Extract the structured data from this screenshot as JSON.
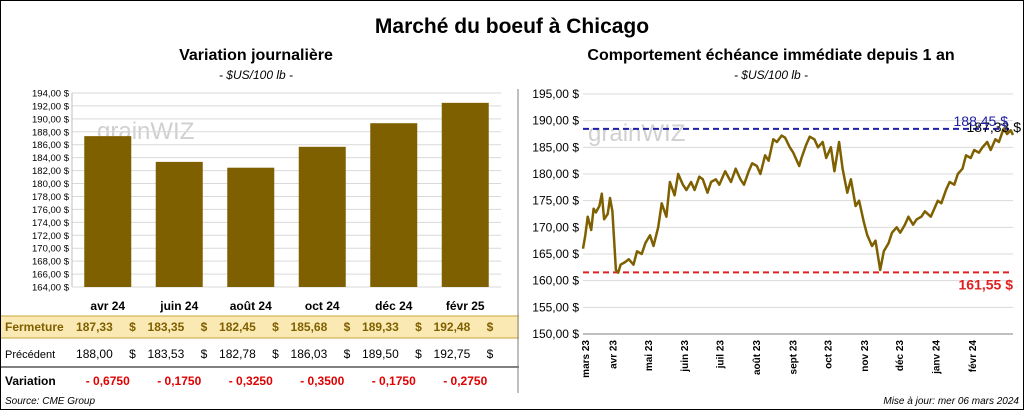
{
  "title": "Marché du boeuf à Chicago",
  "watermark": "grainWIZ",
  "left_panel": {
    "title": "Variation  journalière",
    "subtitle": "- $US/100 lb -"
  },
  "right_panel": {
    "title": "Comportement  échéance immédiate depuis 1 an",
    "subtitle": "- $US/100 lb -"
  },
  "table": {
    "rows": [
      {
        "label": "Fermeture",
        "values": [
          "187,33",
          "183,35",
          "182,45",
          "185,68",
          "189,33",
          "192,48"
        ],
        "currency": "$"
      },
      {
        "label": "Précédent",
        "values": [
          "188,00",
          "183,53",
          "182,78",
          "186,03",
          "189,50",
          "192,75"
        ],
        "currency": "$"
      },
      {
        "label": "Variation",
        "values": [
          "- 0,6750",
          "- 0,1750",
          "- 0,3250",
          "- 0,3500",
          "- 0,1750",
          "- 0,2750"
        ],
        "currency": ""
      }
    ]
  },
  "footer": {
    "source": "Source: CME Group",
    "updated": "Mise à jour: mer 06 mars 2024"
  },
  "colors": {
    "bar": "#7f6000",
    "line": "#7f6000",
    "high_line": "#1f1fa8",
    "low_line": "#e02020",
    "fermeture_bg": "#fbe9b3",
    "variation_text": "#e00000"
  },
  "chart_data": [
    {
      "type": "bar",
      "title": "Variation  journalière",
      "categories": [
        "avr 24",
        "juin 24",
        "août 24",
        "oct 24",
        "déc 24",
        "févr 25"
      ],
      "values": [
        187.33,
        183.35,
        182.45,
        185.68,
        189.33,
        192.48
      ],
      "ylim": [
        164,
        194
      ],
      "yticks": [
        "164,00 $",
        "166,00 $",
        "168,00 $",
        "170,00 $",
        "172,00 $",
        "174,00 $",
        "176,00 $",
        "178,00 $",
        "180,00 $",
        "182,00 $",
        "184,00 $",
        "186,00 $",
        "188,00 $",
        "190,00 $",
        "192,00 $",
        "194,00 $"
      ],
      "grid": true
    },
    {
      "type": "line",
      "title": "Comportement  échéance immédiate depuis 1 an",
      "ylim": [
        150,
        195
      ],
      "yticks": [
        "150,00 $",
        "155,00 $",
        "160,00 $",
        "165,00 $",
        "170,00 $",
        "175,00 $",
        "180,00 $",
        "185,00 $",
        "190,00 $",
        "195,00 $"
      ],
      "xticks": [
        "mars 23",
        "avr 23",
        "mai 23",
        "juin 23",
        "juil 23",
        "août 23",
        "sept 23",
        "oct 23",
        "nov 23",
        "déc 23",
        "janv 24",
        "févr 24"
      ],
      "x_range": [
        "2023-03-06",
        "2024-03-06"
      ],
      "series": [
        {
          "points": [
            [
              "2023-03-06",
              166.0
            ],
            [
              "2023-03-08",
              168.5
            ],
            [
              "2023-03-10",
              172.0
            ],
            [
              "2023-03-13",
              169.5
            ],
            [
              "2023-03-15",
              173.5
            ],
            [
              "2023-03-17",
              172.8
            ],
            [
              "2023-03-20",
              174.0
            ],
            [
              "2023-03-22",
              176.3
            ],
            [
              "2023-03-24",
              171.5
            ],
            [
              "2023-03-27",
              172.5
            ],
            [
              "2023-03-29",
              175.5
            ],
            [
              "2023-03-31",
              173.0
            ],
            [
              "2023-04-03",
              162.0
            ],
            [
              "2023-04-05",
              161.5
            ],
            [
              "2023-04-07",
              163.0
            ],
            [
              "2023-04-11",
              163.5
            ],
            [
              "2023-04-14",
              164.0
            ],
            [
              "2023-04-18",
              163.0
            ],
            [
              "2023-04-21",
              165.5
            ],
            [
              "2023-04-25",
              165.0
            ],
            [
              "2023-04-28",
              167.0
            ],
            [
              "2023-05-02",
              168.5
            ],
            [
              "2023-05-05",
              166.5
            ],
            [
              "2023-05-09",
              170.0
            ],
            [
              "2023-05-12",
              174.5
            ],
            [
              "2023-05-16",
              172.0
            ],
            [
              "2023-05-19",
              178.5
            ],
            [
              "2023-05-23",
              176.0
            ],
            [
              "2023-05-26",
              180.0
            ],
            [
              "2023-05-30",
              178.0
            ],
            [
              "2023-06-02",
              177.0
            ],
            [
              "2023-06-06",
              178.5
            ],
            [
              "2023-06-09",
              177.0
            ],
            [
              "2023-06-13",
              179.5
            ],
            [
              "2023-06-16",
              179.0
            ],
            [
              "2023-06-20",
              176.5
            ],
            [
              "2023-06-23",
              178.5
            ],
            [
              "2023-06-27",
              179.0
            ],
            [
              "2023-06-30",
              178.0
            ],
            [
              "2023-07-05",
              180.5
            ],
            [
              "2023-07-10",
              178.5
            ],
            [
              "2023-07-14",
              181.0
            ],
            [
              "2023-07-18",
              179.0
            ],
            [
              "2023-07-21",
              178.0
            ],
            [
              "2023-07-25",
              180.5
            ],
            [
              "2023-07-28",
              182.0
            ],
            [
              "2023-08-01",
              181.5
            ],
            [
              "2023-08-04",
              180.0
            ],
            [
              "2023-08-08",
              183.5
            ],
            [
              "2023-08-11",
              182.5
            ],
            [
              "2023-08-15",
              186.5
            ],
            [
              "2023-08-18",
              186.0
            ],
            [
              "2023-08-22",
              187.2
            ],
            [
              "2023-08-25",
              186.8
            ],
            [
              "2023-08-29",
              185.0
            ],
            [
              "2023-09-01",
              184.0
            ],
            [
              "2023-09-06",
              181.5
            ],
            [
              "2023-09-08",
              183.0
            ],
            [
              "2023-09-12",
              185.5
            ],
            [
              "2023-09-15",
              187.0
            ],
            [
              "2023-09-19",
              186.5
            ],
            [
              "2023-09-22",
              185.0
            ],
            [
              "2023-09-26",
              186.0
            ],
            [
              "2023-09-29",
              183.0
            ],
            [
              "2023-10-03",
              185.0
            ],
            [
              "2023-10-06",
              180.5
            ],
            [
              "2023-10-10",
              186.0
            ],
            [
              "2023-10-13",
              181.0
            ],
            [
              "2023-10-17",
              176.5
            ],
            [
              "2023-10-20",
              179.0
            ],
            [
              "2023-10-24",
              174.0
            ],
            [
              "2023-10-27",
              175.0
            ],
            [
              "2023-10-31",
              171.0
            ],
            [
              "2023-11-03",
              168.5
            ],
            [
              "2023-11-07",
              166.5
            ],
            [
              "2023-11-10",
              167.5
            ],
            [
              "2023-11-14",
              162.0
            ],
            [
              "2023-11-17",
              165.5
            ],
            [
              "2023-11-21",
              167.0
            ],
            [
              "2023-11-24",
              169.0
            ],
            [
              "2023-11-28",
              170.0
            ],
            [
              "2023-12-01",
              169.0
            ],
            [
              "2023-12-05",
              170.5
            ],
            [
              "2023-12-08",
              172.0
            ],
            [
              "2023-12-12",
              170.5
            ],
            [
              "2023-12-15",
              171.5
            ],
            [
              "2023-12-19",
              172.0
            ],
            [
              "2023-12-22",
              173.0
            ],
            [
              "2023-12-27",
              172.0
            ],
            [
              "2024-01-02",
              175.0
            ],
            [
              "2024-01-05",
              174.5
            ],
            [
              "2024-01-09",
              177.0
            ],
            [
              "2024-01-12",
              178.5
            ],
            [
              "2024-01-16",
              178.0
            ],
            [
              "2024-01-19",
              180.0
            ],
            [
              "2024-01-23",
              181.0
            ],
            [
              "2024-01-26",
              183.5
            ],
            [
              "2024-01-30",
              183.0
            ],
            [
              "2024-02-02",
              184.5
            ],
            [
              "2024-02-06",
              184.0
            ],
            [
              "2024-02-09",
              185.0
            ],
            [
              "2024-02-13",
              186.0
            ],
            [
              "2024-02-16",
              184.5
            ],
            [
              "2024-02-20",
              186.5
            ],
            [
              "2024-02-23",
              186.0
            ],
            [
              "2024-02-27",
              188.5
            ],
            [
              "2024-03-01",
              187.5
            ],
            [
              "2024-03-04",
              188.2
            ],
            [
              "2024-03-06",
              187.33
            ]
          ]
        }
      ],
      "annotations": [
        {
          "label": "187,33 $",
          "value": 187.33,
          "color": "#000000"
        },
        {
          "label": "188,45 $",
          "value": 188.45,
          "color": "#1f1fa8",
          "style": "dashed"
        },
        {
          "label": "161,55 $",
          "value": 161.55,
          "color": "#e02020",
          "style": "dashed"
        }
      ],
      "grid": true
    }
  ]
}
